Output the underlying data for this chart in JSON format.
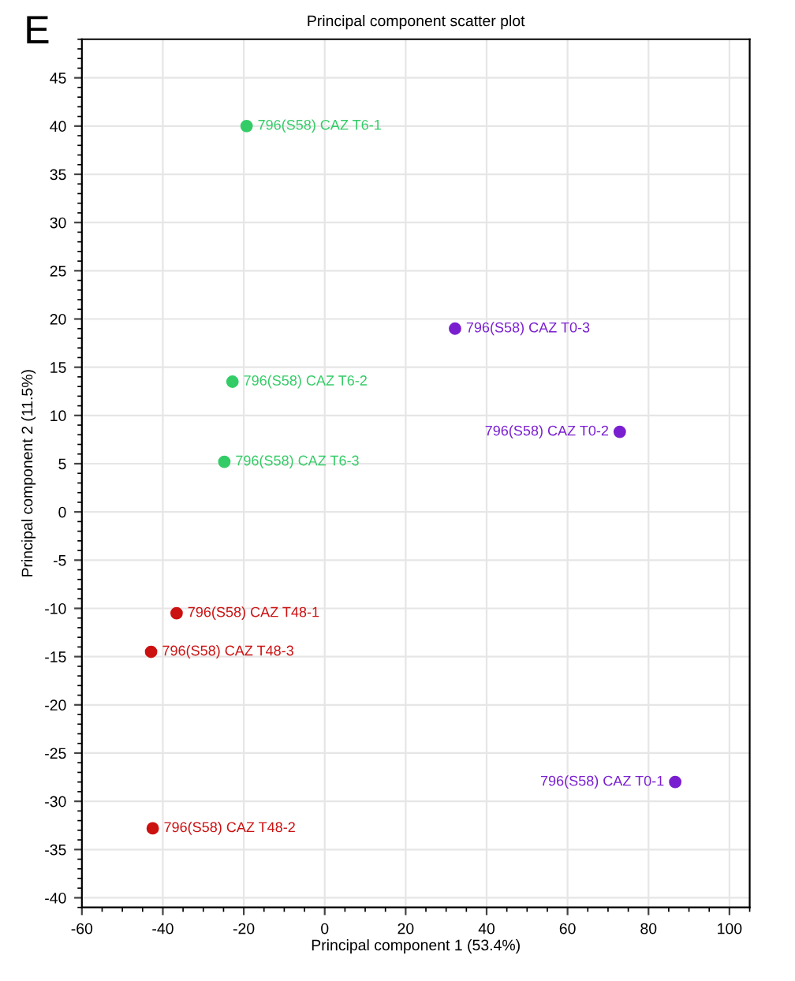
{
  "chart_data": {
    "type": "scatter",
    "title": "Principal component scatter plot",
    "xlabel": "Principal component 1 (53.4%)",
    "ylabel": "Principal component 2 (11.5%)",
    "series": [
      {
        "color": "#33cc66",
        "x": [
          -19.3,
          -22.8,
          -24.8
        ],
        "values": [
          40,
          13.5,
          5.2
        ]
      },
      {
        "color": "#cc1111",
        "x": [
          -36.6,
          -42.9,
          -42.5
        ],
        "values": [
          -10.5,
          -14.5,
          -32.8
        ]
      },
      {
        "color": "#7a1fd0",
        "x": [
          32.2,
          72.9,
          86.6
        ],
        "values": [
          19,
          8.3,
          -28
        ]
      }
    ],
    "annotations": [
      "E",
      {
        "text": "796(S58) CAZ T6-1",
        "x": -19.3,
        "y": 40
      },
      {
        "text": "796(S58) CAZ T6-2",
        "x": -22.8,
        "y": 13.5
      },
      {
        "text": "796(S58) CAZ T6-3",
        "x": -24.8,
        "y": 5.2
      },
      {
        "text": "796(S58) CAZ T48-1",
        "x": -36.6,
        "y": -10.5
      },
      {
        "text": "796(S58) CAZ T48-3",
        "x": -42.9,
        "y": -14.5
      },
      {
        "text": "796(S58) CAZ T48-2",
        "x": -42.5,
        "y": -32.8
      },
      {
        "text": "796(S58) CAZ T0-3",
        "x": 32.2,
        "y": 19
      },
      {
        "text": "796(S58) CAZ T0-2",
        "x": 72.9,
        "y": 8.3
      },
      {
        "text": "796(S58) CAZ T0-1",
        "x": 86.6,
        "y": -28
      }
    ],
    "xlim": [
      -60,
      105
    ],
    "xticks": [
      -60,
      -40,
      -20,
      0,
      20,
      40,
      60,
      80,
      100
    ],
    "ylim": [
      -41,
      49
    ],
    "yticks": [
      -40,
      -35,
      -30,
      -25,
      -20,
      -15,
      -10,
      -5,
      0,
      5,
      10,
      15,
      20,
      25,
      30,
      35,
      40,
      45
    ],
    "grid": true,
    "marker": "circle"
  }
}
